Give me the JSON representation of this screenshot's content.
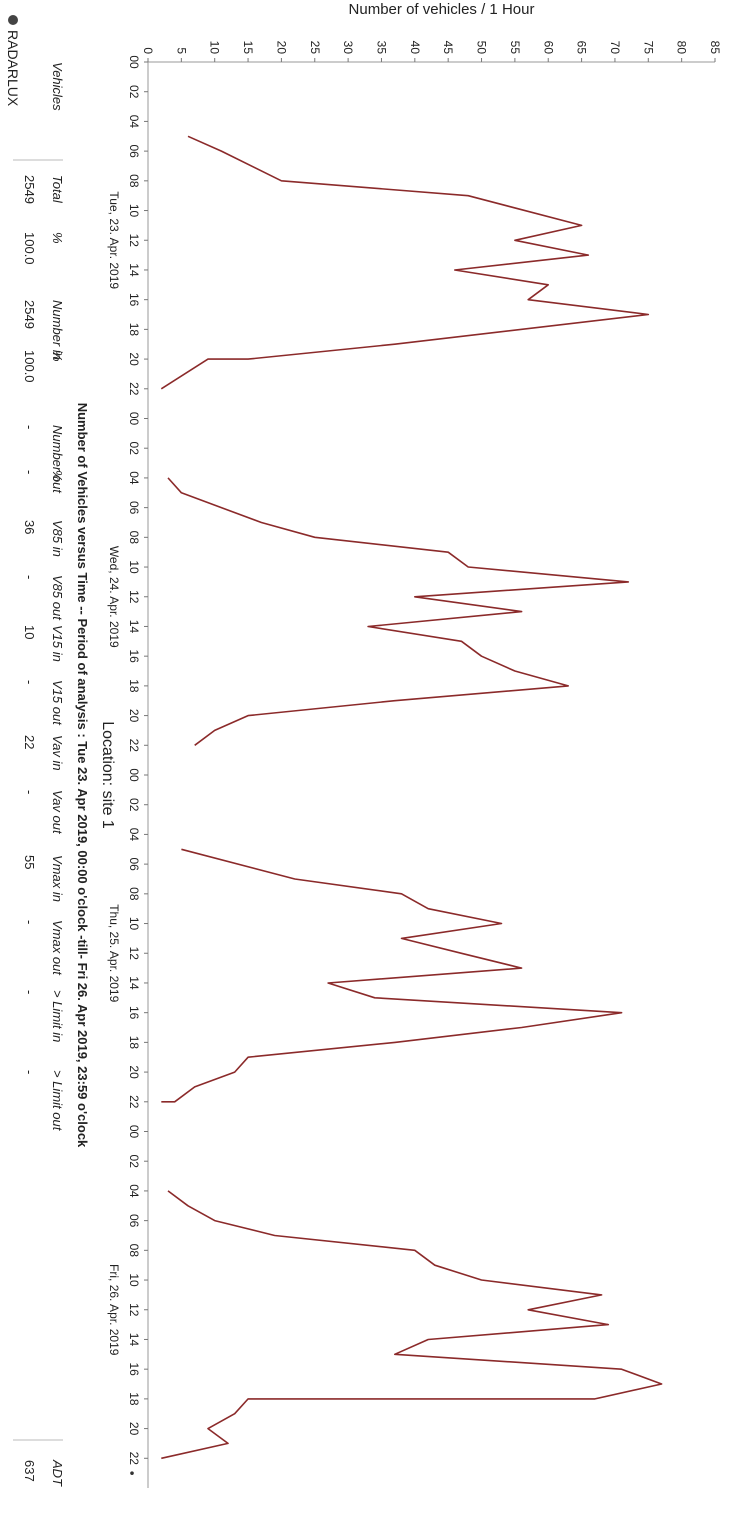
{
  "chart_data": {
    "type": "line",
    "title": "Number of Vehicles versus Time  --  Period of analysis :  Tue 23. Apr 2019, 00:00 o'clock  -till-  Fri 26. Apr 2019, 23:59 o'clock",
    "subtitle": "Location:  site 1",
    "ylabel": "Number of vehicles / 1 Hour",
    "ylim": [
      0,
      85
    ],
    "yticks": [
      "0",
      "5",
      "10",
      "15",
      "20",
      "25",
      "30",
      "35",
      "40",
      "45",
      "50",
      "55",
      "60",
      "65",
      "70",
      "75",
      "80",
      "85"
    ],
    "xlim": [
      0,
      96
    ],
    "hour_ticks": [
      "00",
      "02",
      "04",
      "06",
      "08",
      "10",
      "12",
      "14",
      "16",
      "18",
      "20",
      "22"
    ],
    "day_labels": [
      "Tue, 23. Apr. 2019",
      "Wed, 24. Apr. 2019",
      "Thu, 25. Apr. 2019",
      "Fri, 26. Apr. 2019"
    ],
    "grid": false,
    "line_color": "#8b2a2a",
    "series": [
      {
        "segments": [
          {
            "x": [
              5,
              6,
              8,
              9,
              9,
              11,
              12,
              13,
              14,
              15,
              16,
              17,
              19,
              20,
              20,
              22
            ],
            "y": [
              6,
              11,
              20,
              48,
              48,
              65,
              55,
              66,
              46,
              60,
              57,
              75,
              37,
              15,
              9,
              2
            ]
          },
          {
            "x": [
              28,
              29,
              31,
              32,
              33,
              34,
              34,
              35,
              36,
              37,
              38,
              39,
              40,
              41,
              42,
              43,
              44,
              45,
              46
            ],
            "y": [
              3,
              5,
              17,
              25,
              45,
              48,
              48,
              72,
              40,
              56,
              33,
              47,
              50,
              55,
              63,
              37,
              15,
              10,
              7
            ]
          },
          {
            "x": [
              53,
              55,
              56,
              57,
              58,
              59,
              60,
              61,
              62,
              63,
              64,
              65,
              66,
              67,
              68,
              69,
              70,
              70
            ],
            "y": [
              5,
              22,
              38,
              42,
              53,
              38,
              47,
              56,
              27,
              34,
              71,
              56,
              37,
              15,
              13,
              7,
              4,
              2
            ]
          },
          {
            "x": [
              76,
              77,
              78,
              79,
              80,
              81,
              82,
              83,
              84,
              85,
              86,
              87,
              88,
              89,
              90,
              90,
              91,
              92,
              93,
              94
            ],
            "y": [
              3,
              6,
              10,
              19,
              40,
              43,
              50,
              68,
              57,
              69,
              42,
              37,
              71,
              77,
              67,
              15,
              13,
              9,
              12,
              2
            ]
          }
        ]
      }
    ],
    "extra_points": [
      [
        95,
        0
      ]
    ]
  },
  "logo_text": "RADARLUX",
  "table": {
    "headers": [
      "Vehicles",
      "Total",
      "%",
      "Number in",
      "%",
      "Number out",
      "%",
      "V85 in",
      "V85 out",
      "V15 in",
      "V15 out",
      "Vav in",
      "Vav out",
      "Vmax in",
      "Vmax out",
      "> Limit in",
      "> Limit out",
      "ADT"
    ],
    "values": [
      "",
      "2549",
      "100.0",
      "2549",
      "100.0",
      "-",
      "-",
      "36",
      "-",
      "10",
      "-",
      "22",
      "-",
      "55",
      "-",
      "-",
      "-",
      "637"
    ]
  }
}
